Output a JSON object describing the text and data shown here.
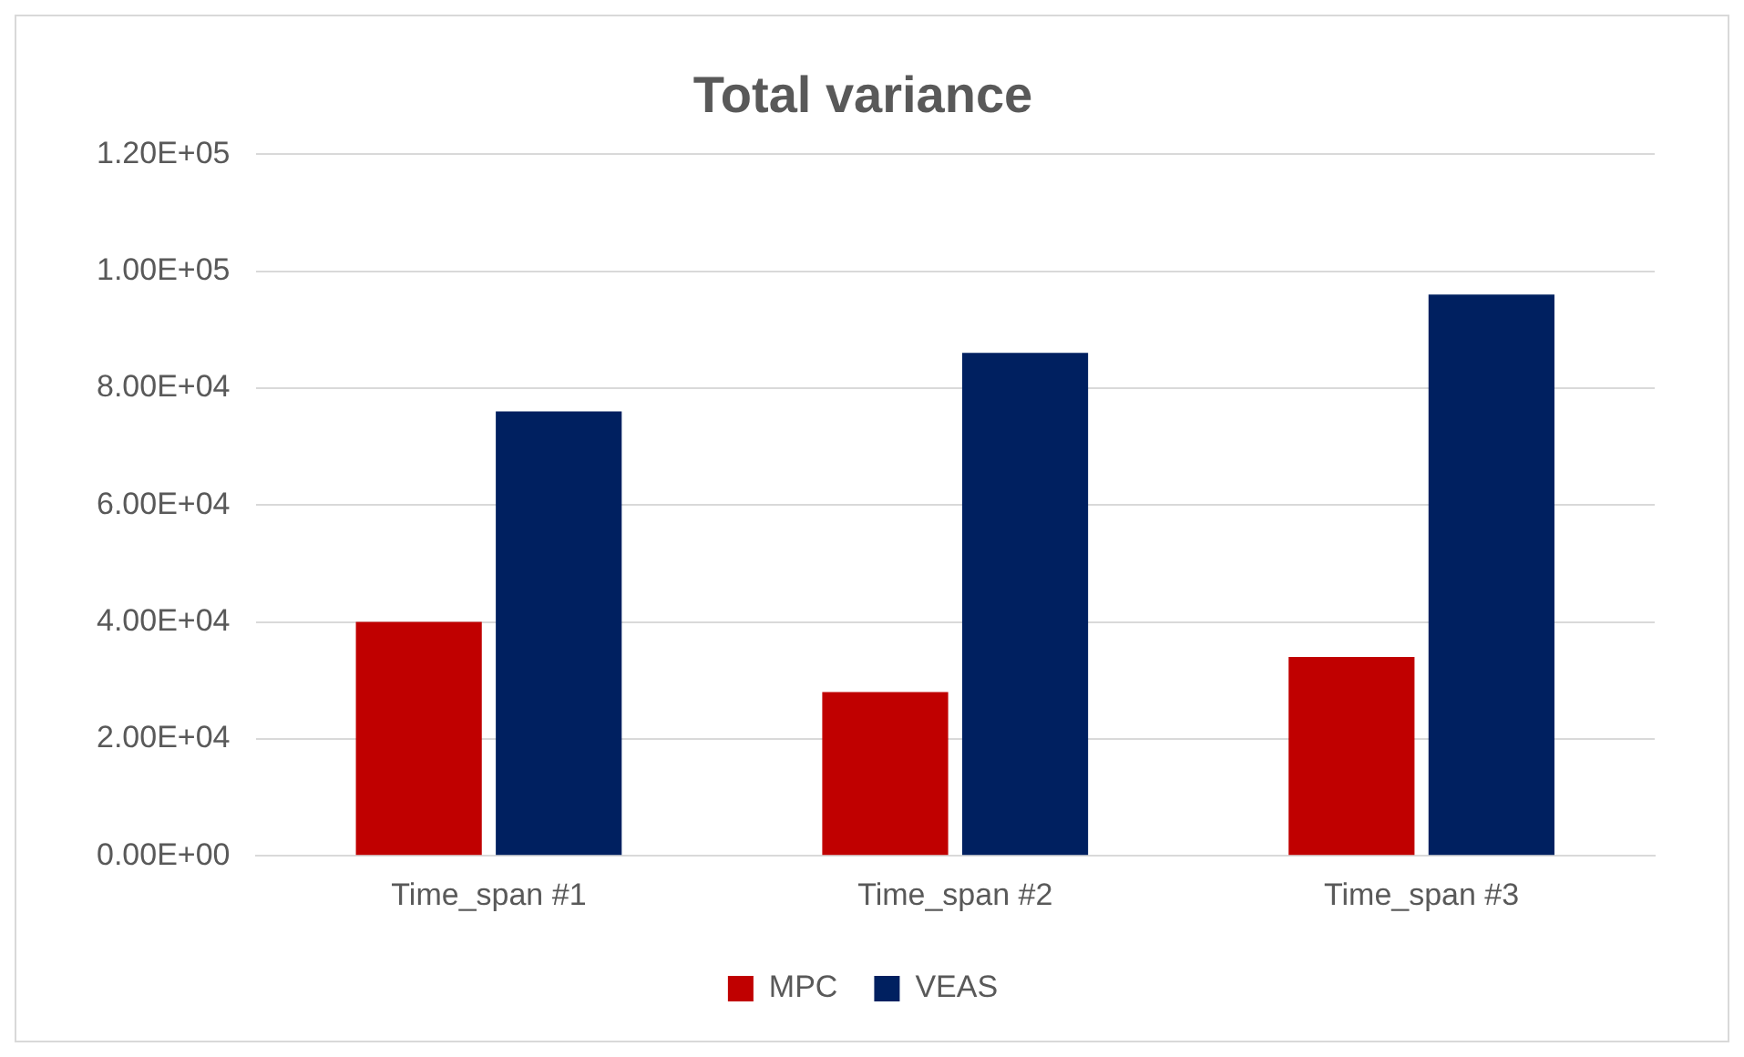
{
  "chart_data": {
    "type": "bar",
    "title": "Total variance",
    "categories": [
      "Time_span #1",
      "Time_span #2",
      "Time_span #3"
    ],
    "series": [
      {
        "name": "MPC",
        "color": "#c00000",
        "values": [
          40000,
          28000,
          34000
        ]
      },
      {
        "name": "VEAS",
        "color": "#002060",
        "values": [
          76000,
          86000,
          96000
        ]
      }
    ],
    "ylim": [
      0,
      120000
    ],
    "yticks": [
      {
        "value": 0,
        "label": "0.00E+00"
      },
      {
        "value": 20000,
        "label": "2.00E+04"
      },
      {
        "value": 40000,
        "label": "4.00E+04"
      },
      {
        "value": 60000,
        "label": "6.00E+04"
      },
      {
        "value": 80000,
        "label": "8.00E+04"
      },
      {
        "value": 100000,
        "label": "1.00E+05"
      },
      {
        "value": 120000,
        "label": "1.20E+05"
      }
    ],
    "grid": "y",
    "legend": "bottom"
  }
}
